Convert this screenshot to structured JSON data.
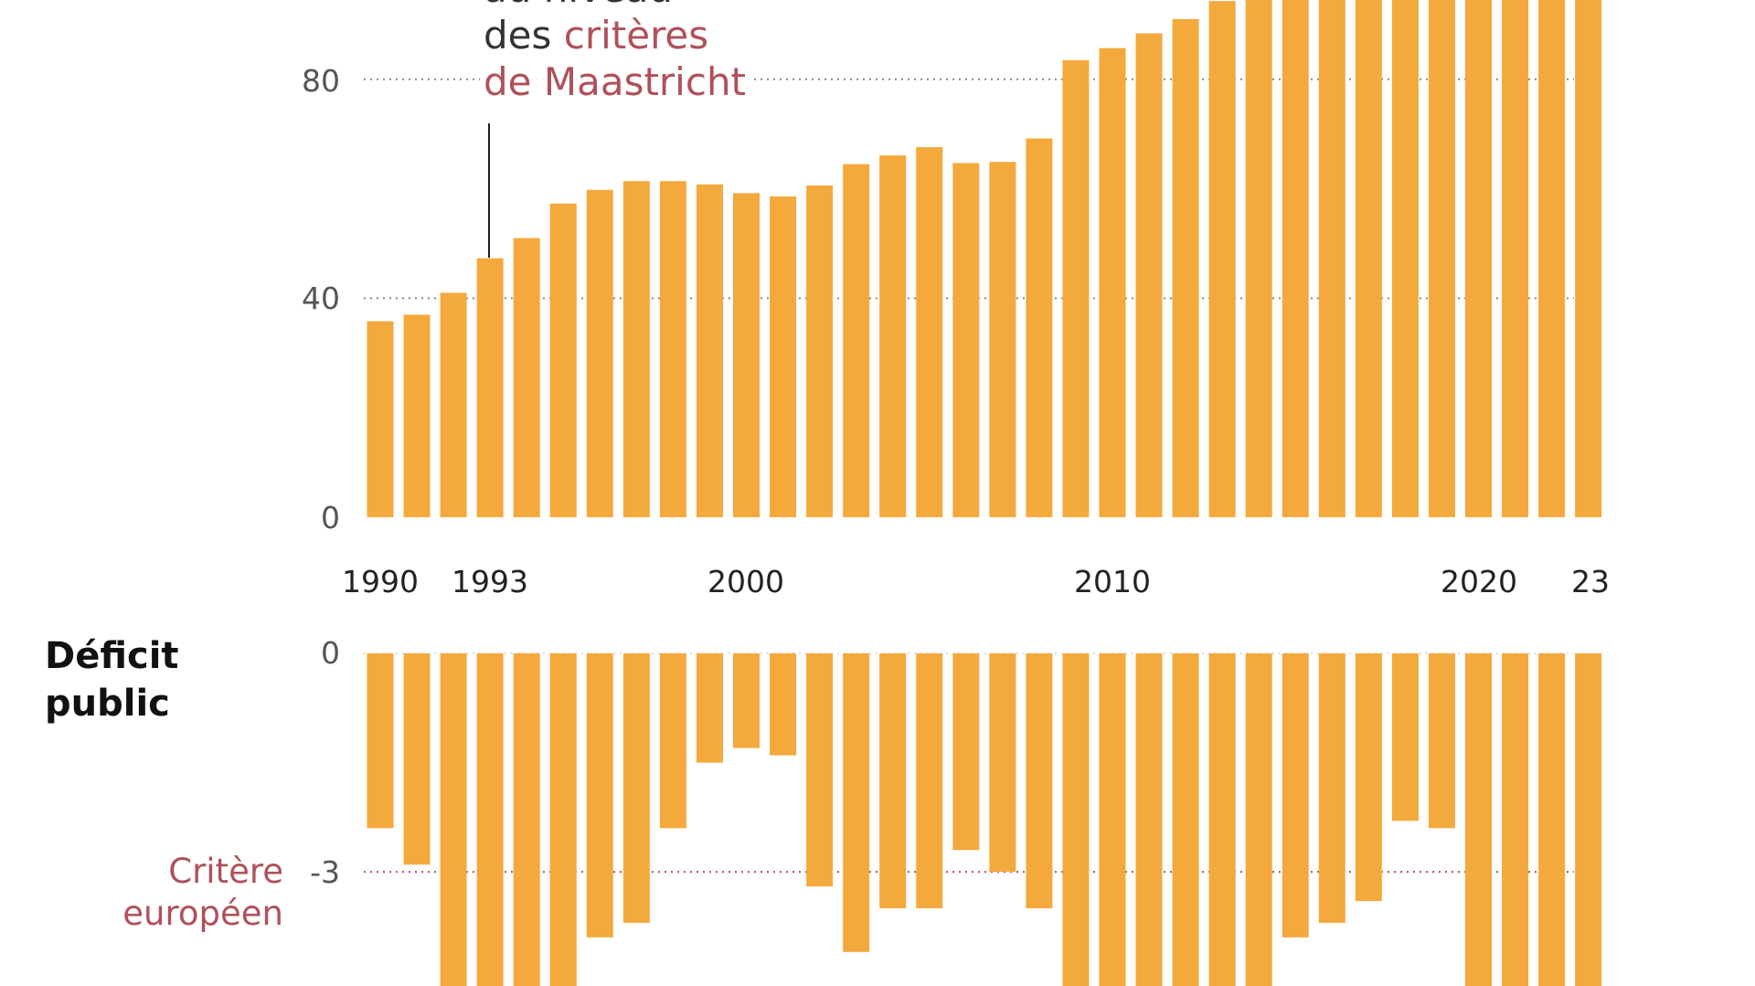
{
  "chart_data": [
    {
      "type": "bar",
      "title": "",
      "categories": [
        1990,
        1991,
        1992,
        1993,
        1994,
        1995,
        1996,
        1997,
        1998,
        1999,
        2000,
        2001,
        2002,
        2003,
        2004,
        2005,
        2006,
        2007,
        2008,
        2009,
        2010,
        2011,
        2012,
        2013,
        2014,
        2015,
        2016,
        2017,
        2018,
        2019,
        2020,
        2021,
        2022,
        2023
      ],
      "values": [
        35.8,
        37,
        41,
        47.3,
        51,
        57.3,
        59.8,
        61.4,
        61.4,
        60.8,
        59.2,
        58.6,
        60.6,
        64.5,
        66.1,
        67.6,
        64.7,
        64.9,
        69.2,
        83.5,
        85.7,
        88.4,
        91,
        94.3,
        95.6,
        95.8,
        98,
        98.1,
        97.8,
        97.4,
        114.6,
        112.9,
        111.4,
        110.6
      ],
      "ylim": [
        0,
        100
      ],
      "yticks": [
        "0",
        "40",
        "80"
      ],
      "xtick_labels": [
        "1990",
        "1993",
        "2000",
        "2010",
        "2020",
        "23"
      ],
      "grid": "dotted horizontal at ticks",
      "annotation": {
        "year": 1993,
        "line1": "au niveau",
        "line2_a": "des ",
        "line2_b": "critères",
        "line3": "de Maastricht"
      },
      "color": "#f4a93c",
      "highlight_color": "#b0505a"
    },
    {
      "type": "bar",
      "title": "Déficit public",
      "title_line1": "Déficit",
      "title_line2": "public",
      "categories": [
        1990,
        1991,
        1992,
        1993,
        1994,
        1995,
        1996,
        1997,
        1998,
        1999,
        2000,
        2001,
        2002,
        2003,
        2004,
        2005,
        2006,
        2007,
        2008,
        2009,
        2010,
        2011,
        2012,
        2013,
        2014,
        2015,
        2016,
        2017,
        2018,
        2019,
        2020,
        2021,
        2022,
        2023
      ],
      "values": [
        -2.4,
        -2.9,
        -4.6,
        -6.4,
        -5.5,
        -5.1,
        -3.9,
        -3.7,
        -2.4,
        -1.5,
        -1.3,
        -1.4,
        -3.2,
        -4.1,
        -3.5,
        -3.5,
        -2.7,
        -3.0,
        -3.5,
        -7.2,
        -6.9,
        -5.2,
        -5.0,
        -4.7,
        -4.6,
        -3.9,
        -3.7,
        -3.4,
        -2.3,
        -2.4,
        -9.0,
        -6.5,
        -4.8,
        -5.5
      ],
      "yticks": [
        "0",
        "-3"
      ],
      "reference": {
        "value": -3,
        "label_line1": "Critère",
        "label_line2": "européen"
      },
      "color": "#f4a93c"
    }
  ]
}
